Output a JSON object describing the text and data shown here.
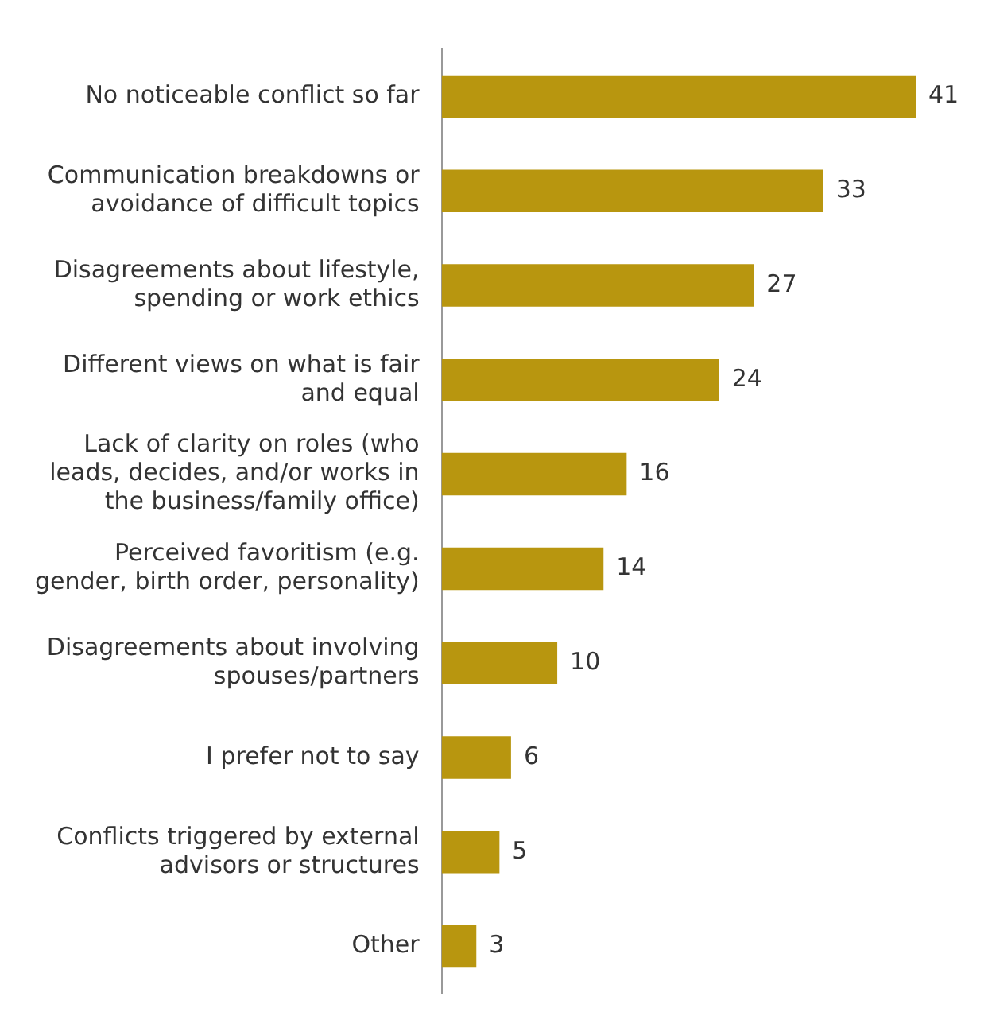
{
  "chart_data": {
    "type": "bar",
    "orientation": "horizontal",
    "categories": [
      "No noticeable conflict so far",
      "Communication breakdowns or avoidance of difficult topics",
      "Disagreements about lifestyle, spending or work ethics",
      "Different views on what is fair and equal",
      "Lack of clarity on roles (who leads, decides, and/or works in the business/family office)",
      "Perceived favoritism (e.g. gender, birth order, personality)",
      "Disagreements about involving spouses/partners",
      "I prefer not to say",
      "Conflicts triggered by external advisors or structures",
      "Other"
    ],
    "values": [
      41,
      33,
      27,
      24,
      16,
      14,
      10,
      6,
      5,
      3
    ],
    "color": "#b8960f",
    "data_labels": true,
    "legend": false
  }
}
